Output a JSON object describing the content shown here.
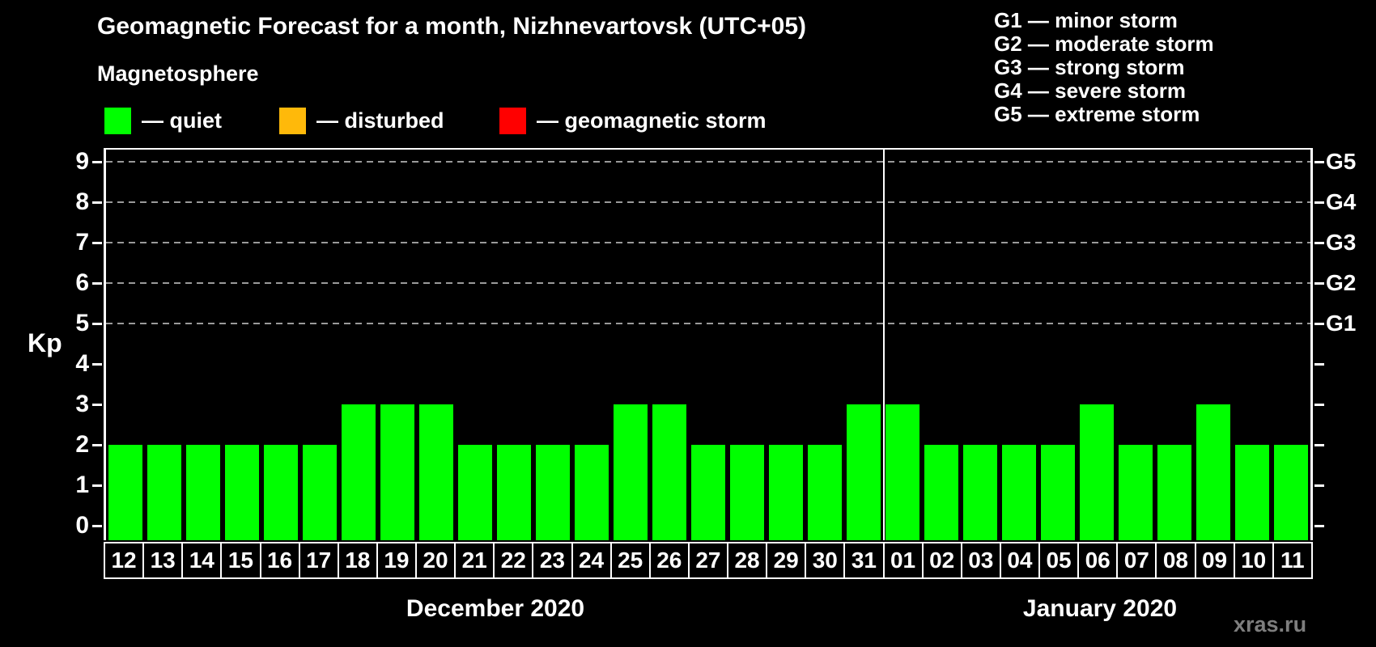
{
  "title": "Geomagnetic Forecast for a month, Nizhnevartovsk (UTC+05)",
  "magnetosphere_label": "Magnetosphere",
  "legend": [
    {
      "name": "quiet",
      "label": "— quiet",
      "color": "#00ff00"
    },
    {
      "name": "disturbed",
      "label": "— disturbed",
      "color": "#ffb90a"
    },
    {
      "name": "storm",
      "label": "— geomagnetic storm",
      "color": "#ff0000"
    }
  ],
  "g_legend": [
    "G1 — minor storm",
    "G2 — moderate storm",
    "G3 — strong storm",
    "G4 — severe storm",
    "G5 — extreme storm"
  ],
  "watermark": "xras.ru",
  "chart_data": {
    "type": "bar",
    "title": "Geomagnetic Forecast for a month, Nizhnevartovsk (UTC+05)",
    "ylabel": "Kp",
    "ylim": [
      0,
      9.5
    ],
    "y_ticks": [
      0,
      1,
      2,
      3,
      4,
      5,
      6,
      7,
      8,
      9
    ],
    "grid_levels": [
      5,
      6,
      7,
      8,
      9
    ],
    "right_axis": [
      {
        "label": "G1",
        "kp": 5
      },
      {
        "label": "G2",
        "kp": 6
      },
      {
        "label": "G3",
        "kp": 7
      },
      {
        "label": "G4",
        "kp": 8
      },
      {
        "label": "G5",
        "kp": 9
      }
    ],
    "categories": [
      "12",
      "13",
      "14",
      "15",
      "16",
      "17",
      "18",
      "19",
      "20",
      "21",
      "22",
      "23",
      "24",
      "25",
      "26",
      "27",
      "28",
      "29",
      "30",
      "31",
      "01",
      "02",
      "03",
      "04",
      "05",
      "06",
      "07",
      "08",
      "09",
      "10",
      "11"
    ],
    "values": [
      2,
      2,
      2,
      2,
      2,
      2,
      3,
      3,
      3,
      2,
      2,
      2,
      2,
      3,
      3,
      2,
      2,
      2,
      2,
      3,
      3,
      2,
      2,
      2,
      2,
      3,
      2,
      2,
      3,
      2,
      2
    ],
    "months": [
      {
        "label": "December 2020",
        "days": 20
      },
      {
        "label": "January 2020",
        "days": 11
      }
    ],
    "color_rule": {
      "quiet_max": 3,
      "disturbed_max": 4
    },
    "legend_position": "top",
    "grid": "dashed horizontal at G-storm levels only"
  }
}
